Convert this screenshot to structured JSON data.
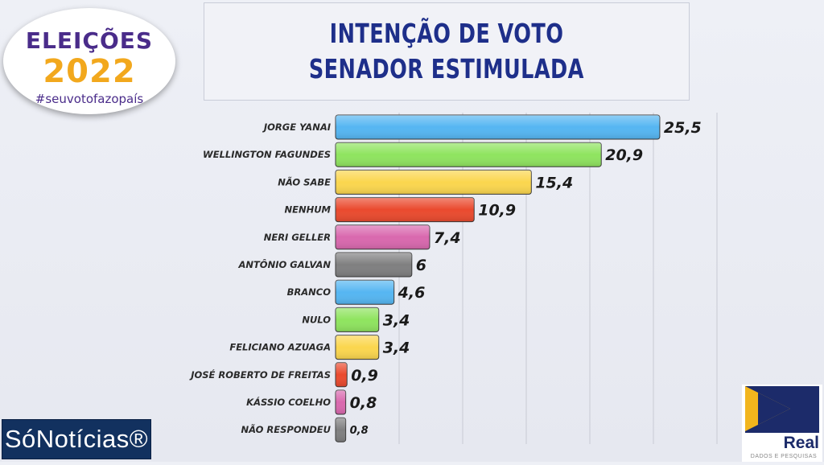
{
  "title": {
    "line1": "INTENÇÃO DE VOTO",
    "line2": "SENADOR ESTIMULADA"
  },
  "logo_eleicoes": {
    "line1": "ELEIÇÕES",
    "line2": "2022",
    "tagline": "#seuvotofazopaís"
  },
  "brand_left": "SóNotícias®",
  "brand_right": {
    "name": "Real",
    "subtitle": "DADOS E PESQUISAS"
  },
  "chart_data": {
    "type": "bar",
    "orientation": "horizontal",
    "title": "INTENÇÃO DE VOTO SENADOR ESTIMULADA",
    "xlabel": "",
    "ylabel": "",
    "xlim": [
      0,
      30
    ],
    "grid": true,
    "categories": [
      "JORGE YANAI",
      "WELLINGTON FAGUNDES",
      "NÃO SABE",
      "NENHUM",
      "NERI GELLER",
      "ANTÔNIO GALVAN",
      "BRANCO",
      "NULO",
      "FELICIANO AZUAGA",
      "JOSÉ ROBERTO DE FREITAS",
      "KÁSSIO COELHO",
      "NÃO RESPONDEU"
    ],
    "values": [
      25.5,
      20.9,
      15.4,
      10.9,
      7.4,
      6,
      4.6,
      3.4,
      3.4,
      0.9,
      0.8,
      0.8
    ],
    "value_labels": [
      "25,5",
      "20,9",
      "15,4",
      "10,9",
      "7,4",
      "6",
      "4,6",
      "3,4",
      "3,4",
      "0,9",
      "0,8",
      "0,8"
    ],
    "colors": [
      "#55b6f2",
      "#8fe45f",
      "#fbd64e",
      "#ea4a2e",
      "#d968ae",
      "#7f7f80",
      "#55b6f2",
      "#8fe45f",
      "#fbd64e",
      "#ea4a2e",
      "#d968ae",
      "#7f7f80"
    ]
  }
}
